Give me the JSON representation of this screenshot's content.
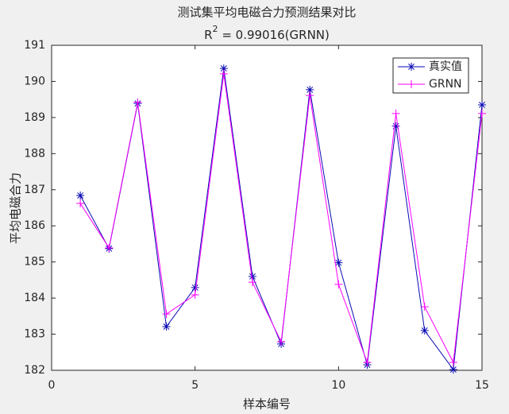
{
  "chart_data": {
    "type": "line",
    "title": "测试集平均电磁合力预测结果对比",
    "subtitle": {
      "base": "R",
      "sup": "2",
      "rest": " = 0.99016(GRNN)"
    },
    "xlabel": "样本编号",
    "ylabel": "平均电磁合力",
    "x": [
      1,
      2,
      3,
      4,
      5,
      6,
      7,
      8,
      9,
      10,
      11,
      12,
      13,
      14,
      15
    ],
    "series": [
      {
        "name": "真实值",
        "color": "#0a0ab4",
        "marker": "star",
        "values": [
          186.84,
          185.37,
          189.39,
          183.21,
          184.29,
          190.36,
          184.6,
          182.73,
          189.77,
          184.98,
          182.15,
          188.76,
          183.1,
          182.02,
          189.35
        ]
      },
      {
        "name": "GRNN",
        "color": "#ff00ff",
        "marker": "plus",
        "values": [
          186.62,
          185.39,
          189.42,
          183.56,
          184.09,
          190.21,
          184.44,
          182.79,
          189.61,
          184.38,
          182.22,
          189.11,
          183.76,
          182.22,
          189.11
        ]
      }
    ],
    "xlim": [
      0,
      15
    ],
    "xticks": [
      0,
      5,
      10,
      15
    ],
    "ylim": [
      182,
      191
    ],
    "yticks": [
      182,
      183,
      184,
      185,
      186,
      187,
      188,
      189,
      190,
      191
    ],
    "grid": false,
    "legend": "northeast"
  }
}
